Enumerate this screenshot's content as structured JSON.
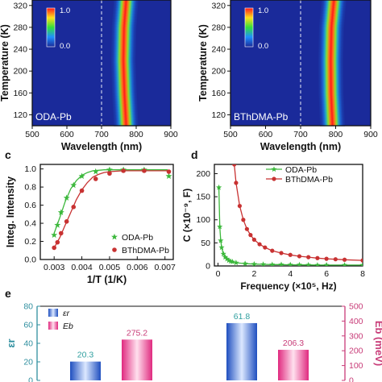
{
  "panel_labels": {
    "c": "c",
    "d": "d",
    "e": "e"
  },
  "chart_data": [
    {
      "panel": "a",
      "type": "heatmap",
      "xlabel": "Wavelength (nm)",
      "ylabel": "Temperature (K)",
      "xlim": [
        500,
        900
      ],
      "ylim": [
        100,
        330
      ],
      "xticks": [
        "500",
        "600",
        "700",
        "800",
        "900"
      ],
      "yticks": [
        "120",
        "160",
        "200",
        "240",
        "280",
        "320"
      ],
      "yticks_values": [
        120,
        160,
        200,
        240,
        280,
        320
      ],
      "xticks_values": [
        500,
        600,
        700,
        800,
        900
      ],
      "colorbar": {
        "min_label": "0.0",
        "max_label": "1.0"
      },
      "sample_label": "ODA-Pb",
      "reference_line_x": 700,
      "peak_trace": {
        "temperature": [
          100,
          160,
          220,
          280,
          330
        ],
        "wavelength": [
          771,
          766,
          763,
          765,
          771
        ],
        "fwhm_nm": 28
      },
      "colors": {
        "background": "#1a2a9a",
        "peak": "#ff1a1a"
      }
    },
    {
      "panel": "b",
      "type": "heatmap",
      "xlabel": "Wavelength (nm)",
      "ylabel": "Temperature (K)",
      "xlim": [
        500,
        900
      ],
      "ylim": [
        100,
        330
      ],
      "xticks": [
        "500",
        "600",
        "700",
        "800",
        "900"
      ],
      "yticks": [
        "120",
        "160",
        "200",
        "240",
        "280",
        "320"
      ],
      "yticks_values": [
        120,
        160,
        200,
        240,
        280,
        320
      ],
      "xticks_values": [
        500,
        600,
        700,
        800,
        900
      ],
      "colorbar": {
        "min_label": "0.0",
        "max_label": "1.0"
      },
      "sample_label": "BThDMA-Pb",
      "reference_line_x": 700,
      "peak_trace": {
        "temperature": [
          100,
          160,
          220,
          280,
          330
        ],
        "wavelength": [
          791,
          787,
          786,
          788,
          795
        ],
        "fwhm_nm": 28
      },
      "colors": {
        "background": "#1a2a9a",
        "peak": "#ff1a1a"
      }
    },
    {
      "panel": "c",
      "type": "scatter",
      "xlabel": "1/T (1/K)",
      "ylabel": "Integ. Intensity",
      "xlim": [
        0.0025,
        0.0073
      ],
      "ylim": [
        0.0,
        1.05
      ],
      "xticks": [
        "0.003",
        "0.004",
        "0.005",
        "0.006",
        "0.007"
      ],
      "xticks_values": [
        0.003,
        0.004,
        0.005,
        0.006,
        0.007
      ],
      "yticks": [
        "0.0",
        "0.2",
        "0.4",
        "0.6",
        "0.8",
        "1.0"
      ],
      "yticks_values": [
        0.0,
        0.2,
        0.4,
        0.6,
        0.8,
        1.0
      ],
      "legend_position": "lower-right",
      "series": [
        {
          "name": "ODA-Pb",
          "color": "#3cb83c",
          "marker": "star",
          "x": [
            0.003,
            0.00312,
            0.00325,
            0.00345,
            0.0037,
            0.004,
            0.0045,
            0.005,
            0.0055,
            0.00625,
            0.00714
          ],
          "y": [
            0.27,
            0.38,
            0.52,
            0.68,
            0.82,
            0.92,
            0.97,
            0.99,
            0.99,
            0.99,
            0.92
          ],
          "fit_x": [
            0.003,
            0.0032,
            0.0034,
            0.0036,
            0.0038,
            0.004,
            0.0042,
            0.0044,
            0.0046,
            0.0048,
            0.005,
            0.0055,
            0.006,
            0.0065,
            0.0071
          ],
          "fit_y": [
            0.29,
            0.46,
            0.64,
            0.78,
            0.87,
            0.93,
            0.96,
            0.98,
            0.985,
            0.99,
            0.99,
            0.99,
            0.99,
            0.99,
            0.99
          ]
        },
        {
          "name": "BThDMA-Pb",
          "color": "#c83232",
          "marker": "circle",
          "x": [
            0.003,
            0.00312,
            0.00325,
            0.00345,
            0.0037,
            0.004,
            0.0045,
            0.005,
            0.0055,
            0.00625,
            0.00714
          ],
          "y": [
            0.13,
            0.19,
            0.29,
            0.42,
            0.58,
            0.76,
            0.89,
            0.95,
            0.98,
            0.98,
            0.97
          ],
          "fit_x": [
            0.003,
            0.0032,
            0.0034,
            0.0036,
            0.0038,
            0.004,
            0.0042,
            0.0044,
            0.0046,
            0.0048,
            0.005,
            0.0055,
            0.006,
            0.0065,
            0.0071
          ],
          "fit_y": [
            0.13,
            0.24,
            0.38,
            0.52,
            0.66,
            0.77,
            0.85,
            0.91,
            0.94,
            0.96,
            0.97,
            0.98,
            0.98,
            0.98,
            0.98
          ]
        }
      ]
    },
    {
      "panel": "d",
      "type": "line",
      "xlabel": "Frequency (×10⁵, Hz)",
      "ylabel": "C (×10⁻⁹, F)",
      "xlim": [
        -0.2,
        8
      ],
      "ylim": [
        0,
        220
      ],
      "xticks": [
        "0",
        "2",
        "4",
        "6",
        "8"
      ],
      "xticks_values": [
        0,
        2,
        4,
        6,
        8
      ],
      "yticks": [
        "0",
        "50",
        "100",
        "150",
        "200"
      ],
      "yticks_values": [
        0,
        50,
        100,
        150,
        200
      ],
      "legend_position": "top-right",
      "series": [
        {
          "name": "ODA-Pb",
          "color": "#3cb83c",
          "marker": "star",
          "x": [
            0.05,
            0.1,
            0.15,
            0.2,
            0.3,
            0.4,
            0.5,
            0.6,
            0.7,
            0.8,
            1.0,
            1.5,
            2.0,
            2.5,
            3.0,
            3.5,
            4.0,
            4.5,
            5.0,
            5.5,
            6.0,
            7.0,
            8.0
          ],
          "y": [
            170,
            85,
            55,
            40,
            26,
            19,
            15,
            12,
            10,
            9,
            7,
            5,
            4,
            3.5,
            3,
            3,
            2.5,
            2.5,
            2.2,
            2,
            2,
            2,
            2
          ]
        },
        {
          "name": "BThDMA-Pb",
          "color": "#c83232",
          "marker": "circle",
          "x": [
            0.9,
            1.0,
            1.2,
            1.4,
            1.6,
            1.8,
            2.0,
            2.3,
            2.6,
            3.0,
            3.5,
            4.0,
            4.5,
            5.0,
            5.5,
            6.0,
            6.5,
            7.0,
            8.0
          ],
          "y": [
            220,
            180,
            130,
            100,
            80,
            67,
            57,
            47,
            40,
            33,
            28,
            24,
            21,
            19,
            17,
            15.5,
            14.5,
            13.5,
            12
          ]
        }
      ]
    },
    {
      "panel": "e",
      "type": "bar",
      "ylabel_left": "εr",
      "ylabel_right": "Eb (meV)",
      "ylim_left": [
        0,
        80
      ],
      "ylim_right": [
        0,
        500
      ],
      "yticks_left": [
        "0",
        "20",
        "40",
        "60",
        "80"
      ],
      "yticks_left_values": [
        0,
        20,
        40,
        60,
        80
      ],
      "yticks_right": [
        "0",
        "100",
        "200",
        "300",
        "400",
        "500"
      ],
      "yticks_right_values": [
        0,
        100,
        200,
        300,
        400,
        500
      ],
      "legend": [
        {
          "name": "εr",
          "color": "#3d6bd4"
        },
        {
          "name": "Eb",
          "color": "#e8559a"
        }
      ],
      "bars": [
        {
          "series": "εr",
          "axis": "left",
          "group": 0,
          "value": 20.3,
          "label": "20.3",
          "label_color": "#2f9f9f",
          "color": "#3d6bd4"
        },
        {
          "series": "Eb",
          "axis": "right",
          "group": 0,
          "value": 275.2,
          "label": "275.2",
          "label_color": "#c83c78",
          "color": "#e8559a"
        },
        {
          "series": "εr",
          "axis": "left",
          "group": 1,
          "value": 61.8,
          "label": "61.8",
          "label_color": "#2f9f9f",
          "color": "#3d6bd4"
        },
        {
          "series": "Eb",
          "axis": "right",
          "group": 1,
          "value": 206.3,
          "label": "206.3",
          "label_color": "#c83c78",
          "color": "#e8559a"
        }
      ]
    }
  ]
}
